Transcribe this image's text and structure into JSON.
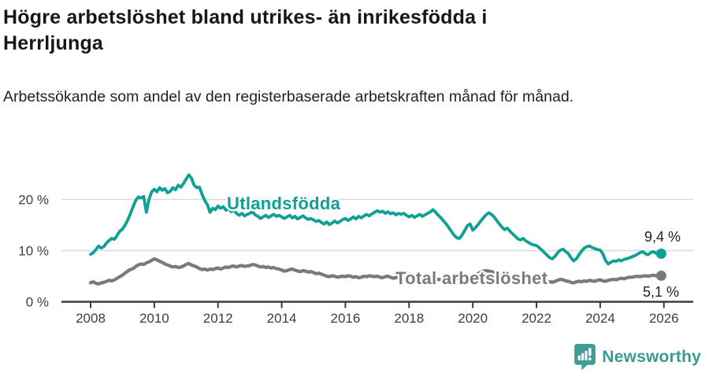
{
  "header": {
    "title": "Högre arbetslöshet bland utrikes- än inrikesfödda i Herrljunga",
    "subtitle": "Arbetssökande som andel av den registerbaserade arbetskraften månad för månad."
  },
  "footer": {
    "brand": "Newsworthy",
    "logo_icon": "newsworthy-pin-bar-chart-icon"
  },
  "colors": {
    "foreign_born_line": "#0da093",
    "total_line": "#7a7a7a",
    "grid": "#d9d9d9",
    "axis": "#3b3b3b",
    "label_text": "#222222",
    "brand_teal": "#399a94"
  },
  "chart_data": {
    "type": "line",
    "title": "Högre arbetslöshet bland utrikes- än inrikesfödda i Herrljunga",
    "subtitle": "Arbetssökande som andel av den registerbaserade arbetskraften månad för månad.",
    "x_unit": "month",
    "x_start": "2008-01",
    "x_end": "2025-12",
    "x_ticks": [
      "2008",
      "2010",
      "2012",
      "2014",
      "2016",
      "2018",
      "2020",
      "2022",
      "2024",
      "2026"
    ],
    "y_ticks": [
      {
        "value": 0,
        "label": "0 %"
      },
      {
        "value": 10,
        "label": "10 %"
      },
      {
        "value": 20,
        "label": "20 %"
      }
    ],
    "ylim": [
      0,
      26
    ],
    "grid": "horizontal",
    "legend_position": "inline-labels",
    "series": [
      {
        "name": "Utlandsfödda",
        "color": "#0da093",
        "end_value": 9.4,
        "end_label": "9,4 %",
        "values": [
          9.3,
          9.6,
          10.2,
          10.9,
          10.5,
          10.8,
          11.5,
          12.0,
          12.4,
          12.2,
          13.0,
          13.8,
          14.2,
          15.0,
          16.0,
          17.2,
          18.6,
          19.8,
          20.5,
          20.3,
          20.6,
          17.5,
          20.0,
          21.5,
          22.0,
          21.5,
          22.3,
          21.8,
          22.1,
          21.3,
          21.6,
          22.3,
          21.9,
          22.8,
          22.4,
          23.1,
          24.0,
          24.8,
          24.2,
          22.8,
          22.3,
          22.4,
          21.0,
          19.8,
          19.0,
          17.5,
          18.3,
          18.0,
          18.7,
          18.3,
          18.6,
          17.9,
          18.2,
          17.6,
          17.9,
          17.3,
          16.9,
          17.3,
          16.8,
          17.1,
          17.3,
          17.6,
          17.0,
          16.7,
          16.3,
          16.6,
          16.9,
          16.5,
          16.8,
          17.1,
          16.7,
          16.9,
          16.6,
          16.3,
          16.6,
          16.9,
          16.4,
          16.7,
          16.2,
          16.5,
          16.8,
          16.4,
          16.1,
          16.3,
          16.0,
          15.7,
          15.9,
          15.5,
          15.2,
          15.6,
          15.1,
          15.4,
          15.8,
          15.4,
          15.7,
          16.1,
          16.3,
          15.9,
          16.2,
          16.6,
          16.2,
          16.7,
          16.4,
          16.8,
          17.1,
          16.8,
          17.2,
          17.5,
          17.8,
          17.5,
          17.7,
          17.3,
          17.6,
          17.2,
          17.4,
          17.0,
          17.3,
          17.1,
          17.3,
          16.9,
          16.6,
          16.9,
          16.5,
          16.8,
          17.1,
          16.7,
          17.0,
          17.3,
          17.6,
          18.0,
          17.5,
          16.9,
          16.4,
          15.8,
          15.2,
          14.5,
          13.7,
          13.0,
          12.5,
          12.4,
          13.1,
          14.0,
          14.9,
          15.2,
          14.0,
          14.5,
          15.1,
          15.8,
          16.4,
          17.0,
          17.4,
          17.1,
          16.6,
          15.9,
          15.2,
          14.6,
          14.1,
          14.4,
          13.8,
          13.3,
          12.8,
          12.3,
          12.1,
          12.4,
          11.9,
          11.6,
          11.3,
          11.1,
          11.0,
          10.6,
          10.1,
          9.6,
          9.1,
          8.6,
          8.4,
          8.9,
          9.6,
          10.1,
          10.3,
          9.8,
          9.4,
          8.6,
          8.0,
          8.4,
          9.2,
          9.9,
          10.5,
          10.8,
          10.9,
          10.6,
          10.4,
          10.2,
          10.1,
          9.4,
          8.1,
          7.4,
          7.7,
          8.0,
          7.9,
          8.2,
          8.0,
          8.3,
          8.4,
          8.6,
          8.8,
          9.0,
          9.3,
          9.6,
          9.8,
          9.4,
          9.2,
          9.6,
          9.8,
          9.5,
          9.3,
          9.4
        ]
      },
      {
        "name": "Total arbetslöshet",
        "color": "#7a7a7a",
        "end_value": 5.1,
        "end_label": "5,1 %",
        "values": [
          3.7,
          3.9,
          3.6,
          3.5,
          3.7,
          3.8,
          4.0,
          4.2,
          4.1,
          4.3,
          4.6,
          4.9,
          5.2,
          5.6,
          6.0,
          6.3,
          6.5,
          6.9,
          7.2,
          7.4,
          7.3,
          7.6,
          7.8,
          8.1,
          8.4,
          8.2,
          7.9,
          7.7,
          7.4,
          7.2,
          7.0,
          6.8,
          6.9,
          6.7,
          6.8,
          7.0,
          7.3,
          7.5,
          7.2,
          7.0,
          6.8,
          6.5,
          6.3,
          6.4,
          6.2,
          6.4,
          6.3,
          6.5,
          6.6,
          6.4,
          6.6,
          6.8,
          6.7,
          6.9,
          7.0,
          6.8,
          7.0,
          7.1,
          6.9,
          7.0,
          7.1,
          7.3,
          7.2,
          7.0,
          6.8,
          6.9,
          6.7,
          6.8,
          6.6,
          6.7,
          6.5,
          6.4,
          6.2,
          6.0,
          6.1,
          6.3,
          6.4,
          6.2,
          6.0,
          5.9,
          6.1,
          6.0,
          5.8,
          5.9,
          5.7,
          5.5,
          5.6,
          5.4,
          5.2,
          5.0,
          4.9,
          5.1,
          5.0,
          4.8,
          4.9,
          5.0,
          4.9,
          5.1,
          5.0,
          4.8,
          4.9,
          4.7,
          4.8,
          5.0,
          4.9,
          5.1,
          5.0,
          4.9,
          5.0,
          4.8,
          4.7,
          4.9,
          5.0,
          4.8,
          4.6,
          4.7,
          4.9,
          4.8,
          4.7,
          4.8,
          4.7,
          4.6,
          4.5,
          4.6,
          4.4,
          4.5,
          4.3,
          4.4,
          4.5,
          4.4,
          4.3,
          4.4,
          4.3,
          4.2,
          4.3,
          4.4,
          4.3,
          4.5,
          4.6,
          4.5,
          4.6,
          4.7,
          4.8,
          4.9,
          5.0,
          5.2,
          5.5,
          5.8,
          6.0,
          6.1,
          6.0,
          5.9,
          5.7,
          5.6,
          5.4,
          5.3,
          5.2,
          5.1,
          5.0,
          4.9,
          4.7,
          4.6,
          4.5,
          4.4,
          4.3,
          4.2,
          4.1,
          4.0,
          3.9,
          3.8,
          3.8,
          3.7,
          3.8,
          3.9,
          3.8,
          4.0,
          4.2,
          4.4,
          4.3,
          4.1,
          4.0,
          3.8,
          3.7,
          3.9,
          4.0,
          3.9,
          4.1,
          4.0,
          4.2,
          4.1,
          4.0,
          4.2,
          4.3,
          4.1,
          4.0,
          4.2,
          4.3,
          4.4,
          4.3,
          4.5,
          4.6,
          4.5,
          4.7,
          4.8,
          4.8,
          4.9,
          5.0,
          4.9,
          5.0,
          5.1,
          5.0,
          5.1,
          5.2,
          5.1,
          5.0,
          5.1
        ]
      }
    ]
  }
}
